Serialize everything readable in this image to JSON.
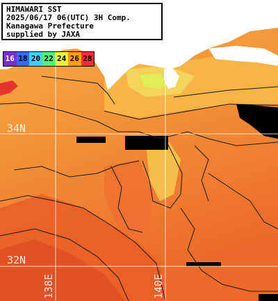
{
  "title_lines": [
    "HIMAWARI SST",
    "2025/06/17 06(UTC) 3H Comp.",
    "Kanagawa Prefecture",
    "supplied by JAXA"
  ],
  "legend": [
    {
      "label": "16",
      "color": "#7b2fd0"
    },
    {
      "label": "18",
      "color": "#2f6bff"
    },
    {
      "label": "20",
      "color": "#3fd0ff"
    },
    {
      "label": "22",
      "color": "#4ff07a"
    },
    {
      "label": "24",
      "color": "#e8f23a"
    },
    {
      "label": "26",
      "color": "#ff9a1a"
    },
    {
      "label": "28",
      "color": "#ff2a3a"
    }
  ],
  "grid_labels": {
    "lat_34": "34N",
    "lat_32": "32N",
    "lon_138": "138E",
    "lon_140": "140E"
  },
  "colors": {
    "warm_sea": "#ef7b2c",
    "mid_sea": "#f39a3a",
    "cool_sea": "#f6c04a",
    "cold_coast": "#e8ee55",
    "land": "#ffffff",
    "cloud_mask": "#000000"
  }
}
